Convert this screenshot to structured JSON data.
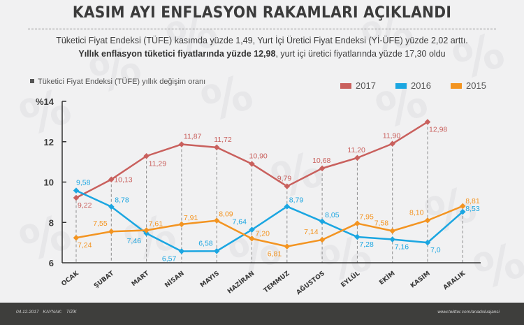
{
  "header": {
    "title": "KASIM AYI ENFLASYON RAKAMLARI AÇIKLANDI",
    "subtitle_line1": "Tüketici Fiyat Endeksi (TÜFE) kasımda yüzde 1,49, Yurt İçi Üretici Fiyat Endeksi (Yİ-ÜFE) yüzde 2,02 arttı.",
    "subtitle_line2_bold": "Yıllık enflasyon tüketici fiyatlarında yüzde 12,98",
    "subtitle_line2_rest": ", yurt içi üretici fiyatlarında yüzde 17,30 oldu"
  },
  "footer": {
    "date": "04.12.2017",
    "source": "KAYNAK: TÜİK",
    "url": "www.twitter.com/anadoluajansi"
  },
  "watermark_glyph": "%",
  "chart_data": {
    "type": "line",
    "title": "Tüketici Fiyat Endeksi (TÜFE) yıllık değişim oranı",
    "xlabel": "",
    "ylabel": "%",
    "ylim": [
      6,
      14
    ],
    "yticks": [
      6,
      8,
      10,
      12,
      14
    ],
    "ytick_labels": [
      "6",
      "8",
      "10",
      "12",
      "%14"
    ],
    "grid": false,
    "legend_position": "top-right",
    "categories": [
      "OCAK",
      "ŞUBAT",
      "MART",
      "NİSAN",
      "MAYIS",
      "HAZİRAN",
      "TEMMUZ",
      "AĞUSTOS",
      "EYLÜL",
      "EKİM",
      "KASIM",
      "ARALIK"
    ],
    "series": [
      {
        "name": "2017",
        "color": "#c9605d",
        "values": [
          9.22,
          10.13,
          11.29,
          11.87,
          11.72,
          10.9,
          9.79,
          10.68,
          11.2,
          11.9,
          12.98,
          null
        ],
        "labels": [
          "9,22",
          "10,13",
          "11,29",
          "11,87",
          "11,72",
          "10,90",
          "9,79",
          "10,68",
          "11,20",
          "11,90",
          "12,98",
          null
        ]
      },
      {
        "name": "2016",
        "color": "#1ba6e1",
        "values": [
          9.58,
          8.78,
          7.46,
          6.57,
          6.58,
          7.64,
          8.79,
          8.05,
          7.28,
          7.16,
          7.0,
          8.53
        ],
        "labels": [
          "9,58",
          "8,78",
          "7,46",
          "6,57",
          "6,58",
          "7,64",
          "8,79",
          "8,05",
          "7,28",
          "7,16",
          "7,0",
          "8,53"
        ]
      },
      {
        "name": "2015",
        "color": "#f39421",
        "values": [
          7.24,
          7.55,
          7.61,
          7.91,
          8.09,
          7.2,
          6.81,
          7.14,
          7.95,
          7.58,
          8.1,
          8.81
        ],
        "labels": [
          "7,24",
          "7,55",
          "7,61",
          "7,91",
          "8,09",
          "7,20",
          "6,81",
          "7,14",
          "7,95",
          "7,58",
          "8,10",
          "8,81"
        ]
      }
    ]
  }
}
